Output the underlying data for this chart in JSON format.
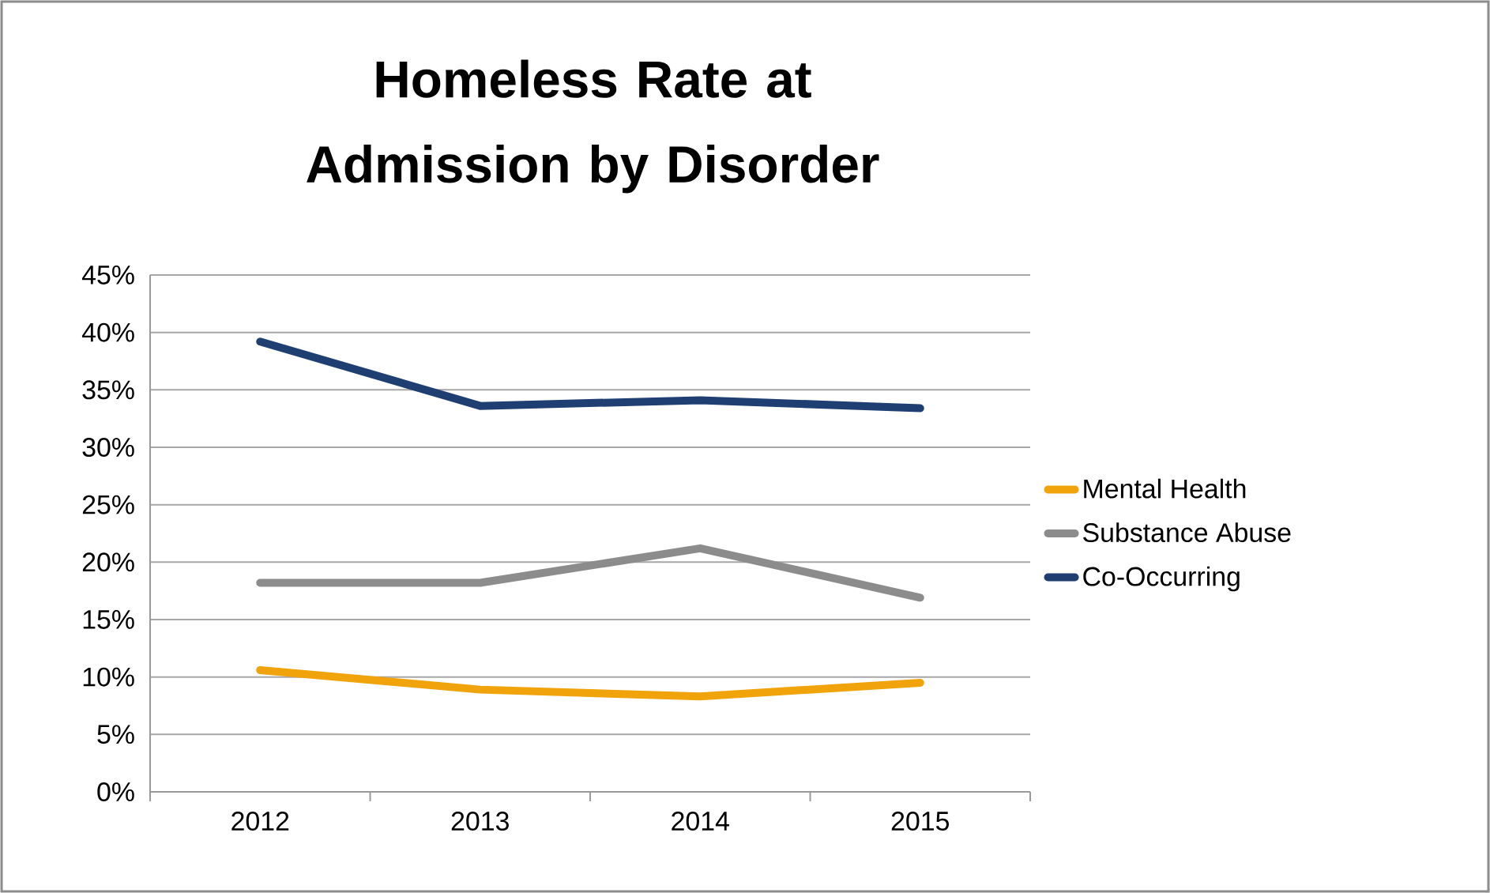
{
  "chart_data": {
    "type": "line",
    "title": "Homeless Rate at Admission by Disorder",
    "categories": [
      "2012",
      "2013",
      "2014",
      "2015"
    ],
    "series": [
      {
        "name": "Mental Health",
        "color": "#F0A30A",
        "values": [
          10.6,
          8.9,
          8.3,
          9.5
        ]
      },
      {
        "name": "Substance Abuse",
        "color": "#8C8C8C",
        "values": [
          18.2,
          18.2,
          21.2,
          16.9
        ]
      },
      {
        "name": "Co-Occurring",
        "color": "#1F3F73",
        "values": [
          39.2,
          33.6,
          34.1,
          33.4
        ]
      }
    ],
    "ylim": [
      0,
      45
    ],
    "yticks": [
      {
        "value": 0,
        "label": "0%"
      },
      {
        "value": 5,
        "label": "5%"
      },
      {
        "value": 10,
        "label": "10%"
      },
      {
        "value": 15,
        "label": "15%"
      },
      {
        "value": 20,
        "label": "20%"
      },
      {
        "value": 25,
        "label": "25%"
      },
      {
        "value": 30,
        "label": "30%"
      },
      {
        "value": 35,
        "label": "35%"
      },
      {
        "value": 40,
        "label": "40%"
      },
      {
        "value": 45,
        "label": "45%"
      }
    ],
    "grid": "y",
    "legend": "right",
    "marker": "none",
    "line_style": "solid"
  }
}
